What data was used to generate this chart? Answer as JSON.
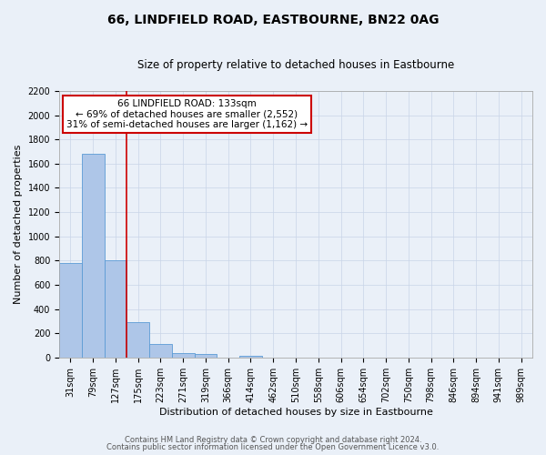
{
  "title": "66, LINDFIELD ROAD, EASTBOURNE, BN22 0AG",
  "subtitle": "Size of property relative to detached houses in Eastbourne",
  "xlabel": "Distribution of detached houses by size in Eastbourne",
  "ylabel": "Number of detached properties",
  "footer_line1": "Contains HM Land Registry data © Crown copyright and database right 2024.",
  "footer_line2": "Contains public sector information licensed under the Open Government Licence v3.0.",
  "annotation_title": "66 LINDFIELD ROAD: 133sqm",
  "annotation_line1": "← 69% of detached houses are smaller (2,552)",
  "annotation_line2": "31% of semi-detached houses are larger (1,162) →",
  "bar_labels": [
    "31sqm",
    "79sqm",
    "127sqm",
    "175sqm",
    "223sqm",
    "271sqm",
    "319sqm",
    "366sqm",
    "414sqm",
    "462sqm",
    "510sqm",
    "558sqm",
    "606sqm",
    "654sqm",
    "702sqm",
    "750sqm",
    "798sqm",
    "846sqm",
    "894sqm",
    "941sqm",
    "989sqm"
  ],
  "bar_values": [
    780,
    1680,
    800,
    295,
    112,
    38,
    27,
    0,
    15,
    0,
    0,
    0,
    0,
    0,
    0,
    0,
    0,
    0,
    0,
    0,
    0
  ],
  "bar_color": "#aec6e8",
  "bar_edge_color": "#5b9bd5",
  "grid_color": "#c8d4e8",
  "background_color": "#eaf0f8",
  "vline_x": 2.5,
  "vline_color": "#cc0000",
  "ylim": [
    0,
    2200
  ],
  "yticks": [
    0,
    200,
    400,
    600,
    800,
    1000,
    1200,
    1400,
    1600,
    1800,
    2000,
    2200
  ],
  "annotation_box_color": "#ffffff",
  "annotation_box_edge": "#cc0000",
  "title_fontsize": 10,
  "subtitle_fontsize": 8.5,
  "xlabel_fontsize": 8,
  "ylabel_fontsize": 8,
  "tick_fontsize": 7,
  "annotation_fontsize": 7.5,
  "footer_fontsize": 6
}
